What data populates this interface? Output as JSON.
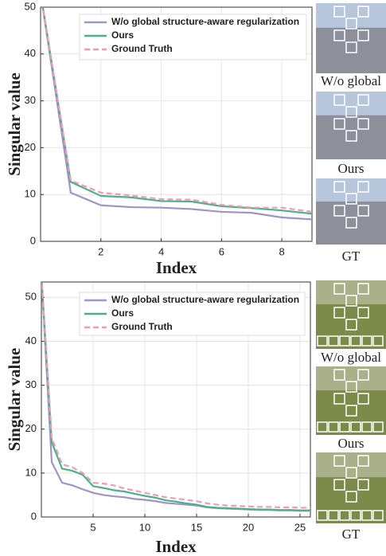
{
  "chart_data": [
    {
      "type": "line",
      "xlabel": "Index",
      "ylabel": "Singular value",
      "xlim": [
        0,
        9
      ],
      "ylim": [
        0,
        50
      ],
      "xticks": [
        2,
        4,
        6,
        8
      ],
      "yticks": [
        0,
        10,
        20,
        30,
        40,
        50
      ],
      "grid": true,
      "legend": "upper right",
      "series": [
        {
          "name": "W/o global structure-aware regularization",
          "color": "#a093c8",
          "linestyle": "solid",
          "values": [
            53,
            10.4,
            7.7,
            7.3,
            7.2,
            6.9,
            6.3,
            6.1,
            5.1,
            4.7
          ]
        },
        {
          "name": "Ours",
          "color": "#4cb08d",
          "linestyle": "solid",
          "values": [
            53,
            12.7,
            9.7,
            9.4,
            8.6,
            8.5,
            7.5,
            7.1,
            6.6,
            5.9
          ]
        },
        {
          "name": "Ground Truth",
          "color": "#f29bb5",
          "linestyle": "dashed",
          "values": [
            53,
            13,
            10.4,
            9.8,
            9.0,
            8.9,
            7.8,
            7.2,
            7.2,
            6.3
          ]
        }
      ],
      "image_captions": [
        "W/o global",
        "Ours",
        "GT"
      ]
    },
    {
      "type": "line",
      "xlabel": "Index",
      "ylabel": "Singular value",
      "xlim": [
        0,
        26
      ],
      "ylim": [
        0,
        53.5
      ],
      "xticks": [
        5,
        10,
        15,
        20,
        25
      ],
      "yticks": [
        0,
        10,
        20,
        30,
        40,
        50
      ],
      "grid": true,
      "legend": "upper right",
      "series": [
        {
          "name": "W/o global structure-aware regularization",
          "color": "#a093c8",
          "linestyle": "solid",
          "values": [
            55,
            12.5,
            7.8,
            7.2,
            6.3,
            5.5,
            5.0,
            4.7,
            4.5,
            4.1,
            3.9,
            3.6,
            3.2,
            3.0,
            2.8,
            2.6,
            2.2,
            2.0,
            1.9,
            1.8,
            1.7,
            1.6,
            1.6,
            1.5,
            1.5,
            1.4,
            1.4
          ]
        },
        {
          "name": "Ours",
          "color": "#4cb08d",
          "linestyle": "solid",
          "values": [
            55,
            17,
            11,
            10.5,
            9.6,
            7,
            6.6,
            6.1,
            5.8,
            5.3,
            4.8,
            4.4,
            3.8,
            3.5,
            3.1,
            2.8,
            2.3,
            2.1,
            2.0,
            1.9,
            1.8,
            1.7,
            1.7,
            1.6,
            1.6,
            1.5,
            1.5
          ]
        },
        {
          "name": "Ground Truth",
          "color": "#f29bb5",
          "linestyle": "dashed",
          "values": [
            55,
            18,
            12,
            11.3,
            10,
            7.8,
            7.6,
            7.2,
            6.5,
            6.0,
            5.5,
            5.0,
            4.5,
            4.2,
            3.9,
            3.6,
            3.1,
            2.8,
            2.6,
            2.5,
            2.4,
            2.3,
            2.3,
            2.2,
            2.2,
            2.1,
            2.1
          ]
        }
      ],
      "image_captions": [
        "W/o global",
        "Ours",
        "GT"
      ]
    }
  ]
}
